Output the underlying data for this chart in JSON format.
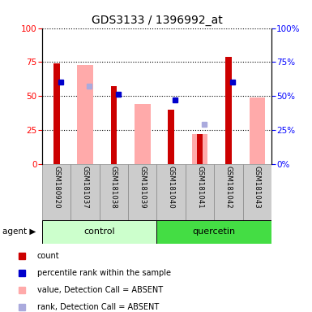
{
  "title": "GDS3133 / 1396992_at",
  "samples": [
    "GSM180920",
    "GSM181037",
    "GSM181038",
    "GSM181039",
    "GSM181040",
    "GSM181041",
    "GSM181042",
    "GSM181043"
  ],
  "count_values": [
    74,
    0,
    57,
    0,
    40,
    22,
    79,
    0
  ],
  "rank_values": [
    60,
    0,
    51,
    0,
    47,
    0,
    60,
    0
  ],
  "absent_value_values": [
    0,
    73,
    0,
    44,
    0,
    22,
    0,
    49
  ],
  "absent_rank_values": [
    0,
    57,
    0,
    0,
    0,
    29,
    0,
    0
  ],
  "count_color": "#cc0000",
  "rank_color": "#0000cc",
  "absent_value_color": "#ffaaaa",
  "absent_rank_color": "#aaaadd",
  "yticks": [
    0,
    25,
    50,
    75,
    100
  ],
  "control_bg": "#ccffcc",
  "quercetin_bg": "#44dd44",
  "label_area_color": "#cccccc",
  "group_label_control": "control",
  "group_label_quercetin": "quercetin",
  "legend_items": [
    {
      "color": "#cc0000",
      "label": "count"
    },
    {
      "color": "#0000cc",
      "label": "percentile rank within the sample"
    },
    {
      "color": "#ffaaaa",
      "label": "value, Detection Call = ABSENT"
    },
    {
      "color": "#aaaadd",
      "label": "rank, Detection Call = ABSENT"
    }
  ]
}
